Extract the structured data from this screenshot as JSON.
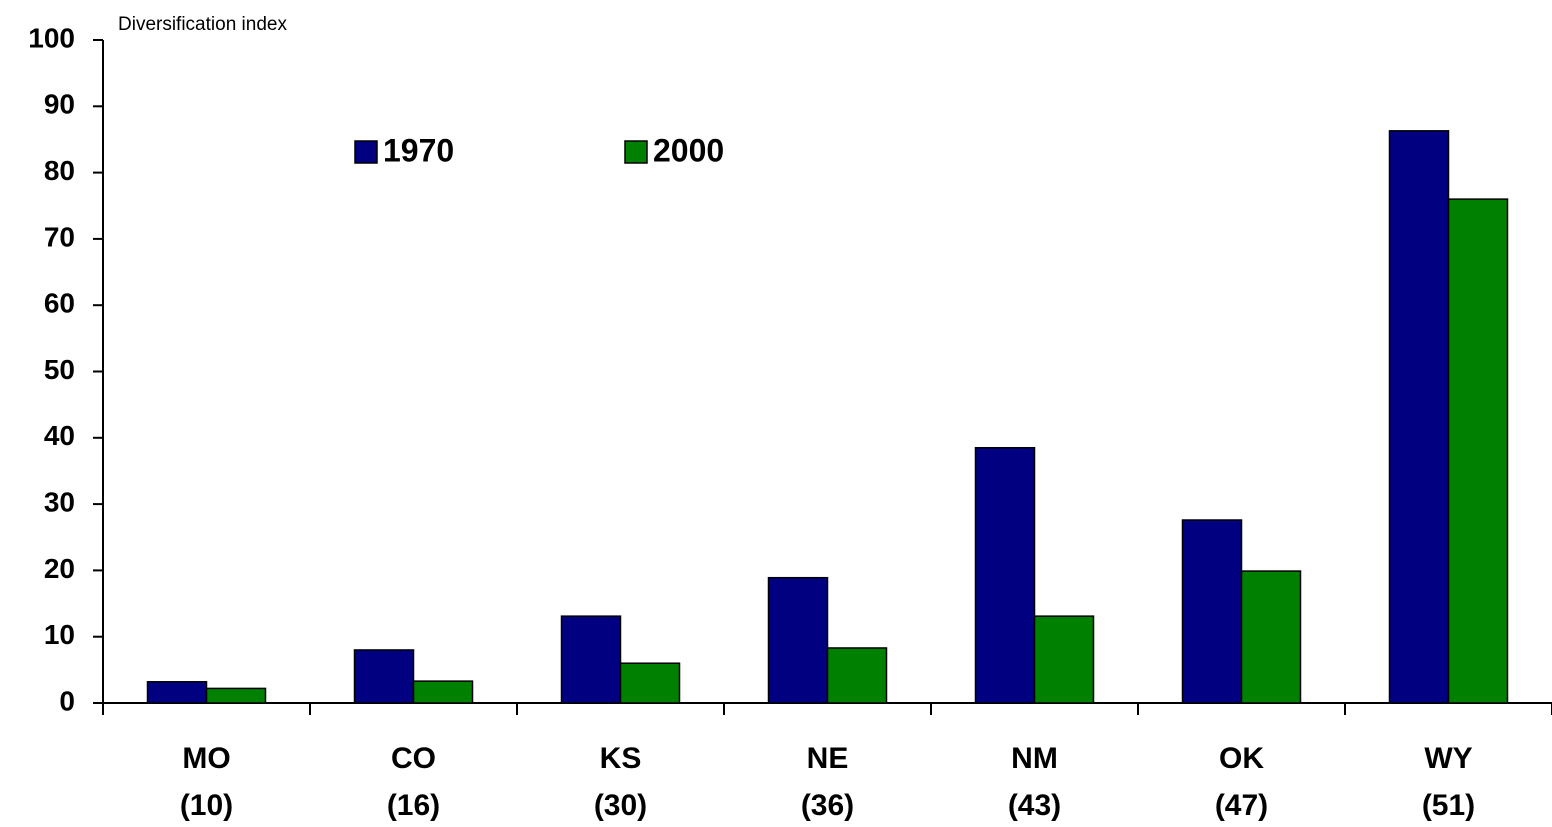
{
  "chart_data": {
    "type": "bar",
    "y_label": "Diversification index",
    "categories": [
      "MO",
      "CO",
      "KS",
      "NE",
      "NM",
      "OK",
      "WY"
    ],
    "category_ranks": [
      "(10)",
      "(16)",
      "(30)",
      "(36)",
      "(43)",
      "(47)",
      "(51)"
    ],
    "series": [
      {
        "name": "1970",
        "color": "#000080",
        "values": [
          3.2,
          8.0,
          13.1,
          18.9,
          38.5,
          27.6,
          86.3
        ]
      },
      {
        "name": "2000",
        "color": "#008000",
        "values": [
          2.2,
          3.3,
          6.0,
          8.3,
          13.1,
          19.9,
          76.0
        ]
      }
    ],
    "ylim": [
      0,
      100
    ],
    "yticks": [
      0,
      10,
      20,
      30,
      40,
      50,
      60,
      70,
      80,
      90,
      100
    ],
    "grid": false
  }
}
